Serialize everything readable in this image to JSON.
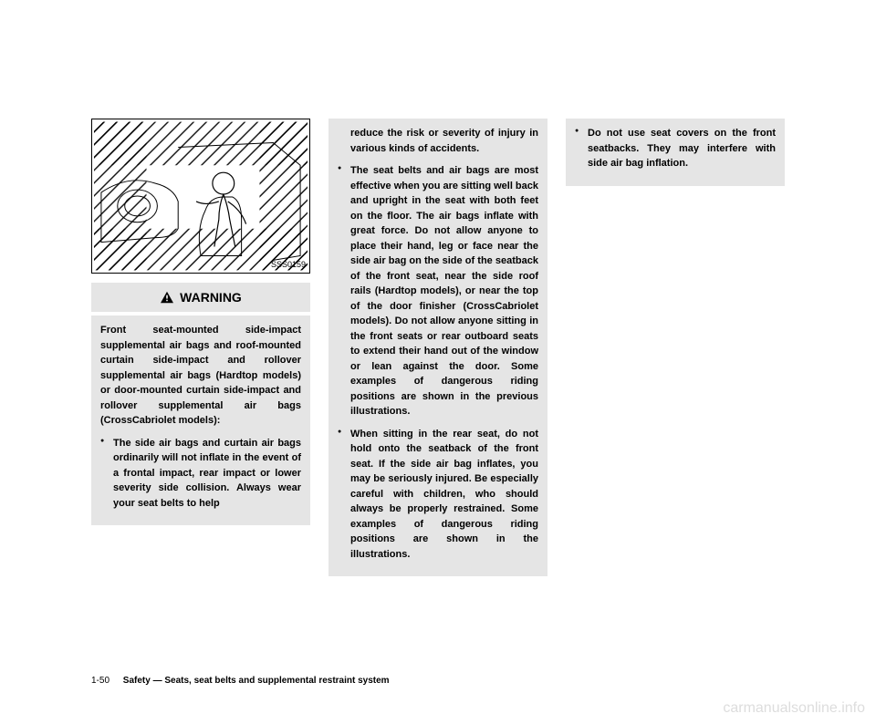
{
  "figure": {
    "id": "SSS0159"
  },
  "warning": {
    "label": "WARNING"
  },
  "col1": {
    "intro": "Front seat-mounted side-impact supplemental air bags and roof-mounted curtain side-impact and rollover supplemental air bags (Hardtop models) or door-mounted curtain side-impact and rollover supplemental air bags (CrossCabriolet models):",
    "b1": "The side air bags and curtain air bags ordinarily will not inflate in the event of a frontal impact, rear impact or lower severity side collision. Always wear your seat belts to help"
  },
  "col2": {
    "cont": "reduce the risk or severity of injury in various kinds of accidents.",
    "b2": "The seat belts and air bags are most effective when you are sitting well back and upright in the seat with both feet on the floor. The air bags inflate with great force. Do not allow anyone to place their hand, leg or face near the side air bag on the side of the seatback of the front seat, near the side roof rails (Hardtop models), or near the top of the door finisher (CrossCabriolet models). Do not allow anyone sitting in the front seats or rear outboard seats to extend their hand out of the window or lean against the door. Some examples of dangerous riding positions are shown in the previous illustrations.",
    "b3": "When sitting in the rear seat, do not hold onto the seatback of the front seat. If the side air bag inflates, you may be seriously injured. Be especially careful with children, who should always be properly restrained. Some examples of dangerous riding positions are shown in the illustrations."
  },
  "col3": {
    "b4": "Do not use seat covers on the front seatbacks. They may interfere with side air bag inflation."
  },
  "footer": {
    "page": "1-50",
    "section": "Safety — Seats, seat belts and supplemental restraint system"
  },
  "watermark": "carmanualsonline.info"
}
